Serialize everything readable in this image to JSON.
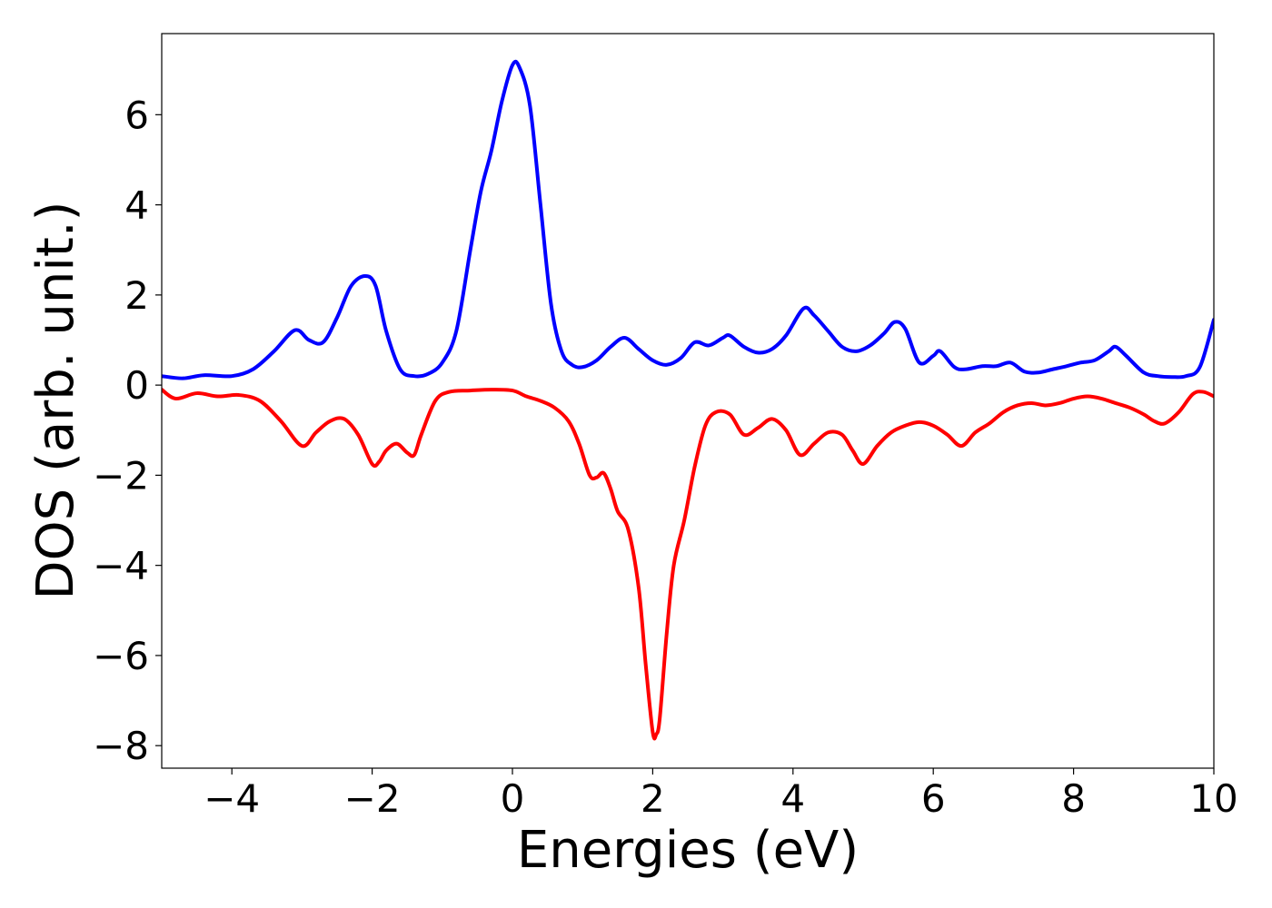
{
  "chart_data": {
    "type": "line",
    "title": "",
    "xlabel": "Energies (eV)",
    "ylabel": "DOS (arb. unit.)",
    "xlim": [
      -5,
      10
    ],
    "ylim": [
      -8.5,
      7.8
    ],
    "xticks": [
      -4,
      -2,
      0,
      2,
      4,
      6,
      8,
      10
    ],
    "xtick_labels": [
      "−4",
      "−2",
      "0",
      "2",
      "4",
      "6",
      "8",
      "10"
    ],
    "yticks": [
      -8,
      -6,
      -4,
      -2,
      0,
      2,
      4,
      6
    ],
    "ytick_labels": [
      "−8",
      "−6",
      "−4",
      "−2",
      "0",
      "2",
      "4",
      "6"
    ],
    "grid": false,
    "legend": false,
    "series": [
      {
        "color": "#0000ff",
        "x": [
          -5.0,
          -4.7,
          -4.4,
          -4.0,
          -3.7,
          -3.4,
          -3.1,
          -2.9,
          -2.7,
          -2.5,
          -2.3,
          -2.1,
          -1.95,
          -1.8,
          -1.6,
          -1.4,
          -1.2,
          -1.0,
          -0.8,
          -0.6,
          -0.45,
          -0.3,
          -0.15,
          0.0,
          0.1,
          0.25,
          0.4,
          0.55,
          0.7,
          0.85,
          1.0,
          1.2,
          1.4,
          1.6,
          1.8,
          2.0,
          2.2,
          2.4,
          2.6,
          2.8,
          3.0,
          3.1,
          3.3,
          3.5,
          3.7,
          3.9,
          4.15,
          4.3,
          4.5,
          4.7,
          4.9,
          5.1,
          5.3,
          5.45,
          5.6,
          5.8,
          6.0,
          6.1,
          6.3,
          6.45,
          6.7,
          6.9,
          7.1,
          7.3,
          7.5,
          7.7,
          7.9,
          8.1,
          8.3,
          8.5,
          8.6,
          8.75,
          9.0,
          9.2,
          9.4,
          9.6,
          9.8,
          10.0
        ],
        "y": [
          0.2,
          0.15,
          0.22,
          0.2,
          0.35,
          0.75,
          1.22,
          1.0,
          0.95,
          1.5,
          2.2,
          2.42,
          2.2,
          1.2,
          0.35,
          0.2,
          0.25,
          0.5,
          1.2,
          3.0,
          4.3,
          5.2,
          6.3,
          7.1,
          7.05,
          6.2,
          4.0,
          1.8,
          0.75,
          0.45,
          0.4,
          0.55,
          0.85,
          1.05,
          0.8,
          0.55,
          0.45,
          0.6,
          0.95,
          0.88,
          1.05,
          1.1,
          0.85,
          0.72,
          0.8,
          1.1,
          1.7,
          1.55,
          1.2,
          0.85,
          0.75,
          0.88,
          1.15,
          1.4,
          1.25,
          0.5,
          0.65,
          0.75,
          0.4,
          0.35,
          0.42,
          0.42,
          0.5,
          0.3,
          0.28,
          0.35,
          0.42,
          0.5,
          0.55,
          0.75,
          0.85,
          0.65,
          0.28,
          0.2,
          0.18,
          0.2,
          0.4,
          1.45
        ]
      },
      {
        "color": "#ff0000",
        "x": [
          -5.0,
          -4.8,
          -4.5,
          -4.2,
          -3.9,
          -3.6,
          -3.3,
          -3.0,
          -2.8,
          -2.6,
          -2.4,
          -2.2,
          -2.0,
          -1.9,
          -1.8,
          -1.65,
          -1.5,
          -1.4,
          -1.3,
          -1.1,
          -0.9,
          -0.6,
          -0.3,
          0.0,
          0.2,
          0.4,
          0.6,
          0.8,
          0.95,
          1.1,
          1.2,
          1.3,
          1.4,
          1.5,
          1.65,
          1.8,
          1.9,
          2.0,
          2.05,
          2.1,
          2.2,
          2.3,
          2.45,
          2.6,
          2.75,
          2.9,
          3.1,
          3.3,
          3.5,
          3.7,
          3.9,
          4.1,
          4.3,
          4.5,
          4.7,
          4.85,
          5.0,
          5.2,
          5.4,
          5.6,
          5.8,
          6.0,
          6.2,
          6.4,
          6.6,
          6.8,
          7.0,
          7.2,
          7.4,
          7.6,
          7.8,
          8.0,
          8.2,
          8.4,
          8.6,
          8.8,
          9.0,
          9.15,
          9.3,
          9.5,
          9.7,
          9.85,
          10.0
        ],
        "y": [
          -0.1,
          -0.3,
          -0.18,
          -0.25,
          -0.22,
          -0.35,
          -0.8,
          -1.35,
          -1.05,
          -0.8,
          -0.75,
          -1.1,
          -1.75,
          -1.7,
          -1.45,
          -1.3,
          -1.5,
          -1.55,
          -1.1,
          -0.35,
          -0.15,
          -0.12,
          -0.1,
          -0.12,
          -0.25,
          -0.35,
          -0.5,
          -0.8,
          -1.3,
          -2.0,
          -2.05,
          -1.95,
          -2.3,
          -2.8,
          -3.2,
          -4.5,
          -6.2,
          -7.7,
          -7.75,
          -7.4,
          -5.5,
          -4.0,
          -3.0,
          -1.8,
          -0.9,
          -0.6,
          -0.65,
          -1.1,
          -0.95,
          -0.75,
          -1.0,
          -1.55,
          -1.3,
          -1.05,
          -1.1,
          -1.45,
          -1.75,
          -1.35,
          -1.05,
          -0.9,
          -0.82,
          -0.9,
          -1.1,
          -1.35,
          -1.05,
          -0.85,
          -0.6,
          -0.45,
          -0.4,
          -0.45,
          -0.4,
          -0.3,
          -0.25,
          -0.3,
          -0.4,
          -0.5,
          -0.65,
          -0.8,
          -0.85,
          -0.6,
          -0.2,
          -0.15,
          -0.25
        ]
      }
    ]
  }
}
